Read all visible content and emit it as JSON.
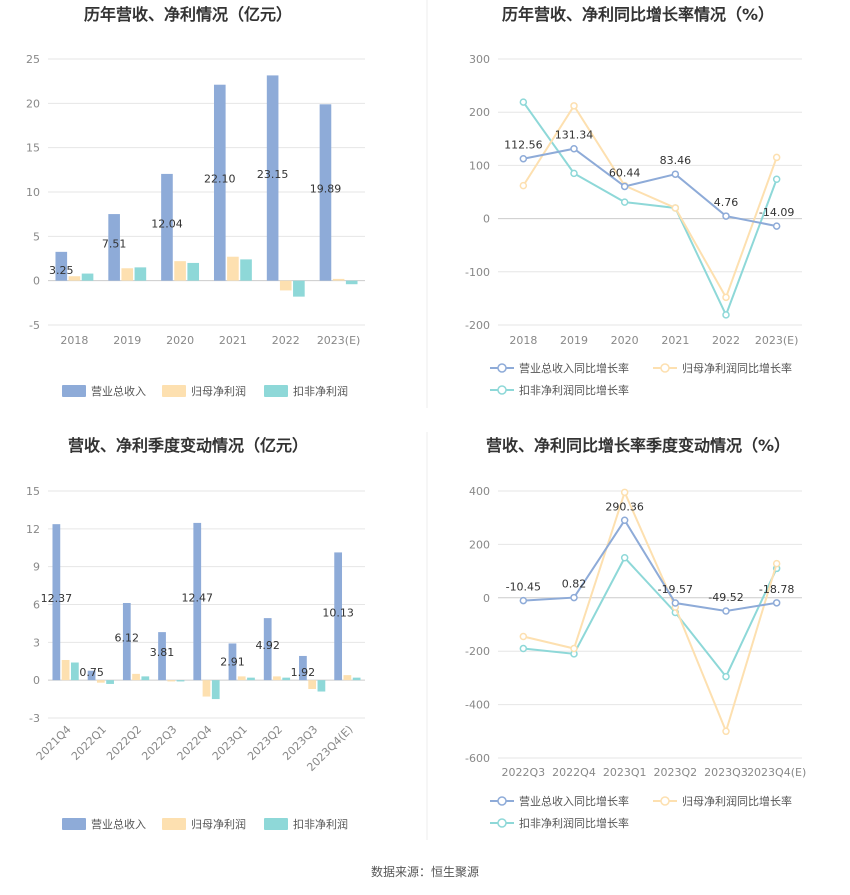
{
  "source": "数据来源：恒生聚源",
  "colors": {
    "revenue": "#8eabd8",
    "net_profit": "#fde0b0",
    "deducted_profit": "#8ed8d8",
    "grid": "#e6e6e6",
    "axis": "#cccccc"
  },
  "chart_data": [
    {
      "type": "bar",
      "title": "历年营收、净利情况（亿元）",
      "categories": [
        "2018",
        "2019",
        "2020",
        "2021",
        "2022",
        "2023(E)"
      ],
      "ylim": [
        -5,
        25
      ],
      "yticks": [
        -5,
        0,
        5,
        10,
        15,
        20,
        25
      ],
      "legend_position": "bottom",
      "series": [
        {
          "name": "营业总收入",
          "values": [
            3.25,
            7.51,
            12.04,
            22.1,
            23.15,
            19.89
          ],
          "labels": [
            "3.25",
            "7.51",
            "12.04",
            "22.10",
            "23.15",
            "19.89"
          ]
        },
        {
          "name": "归母净利润",
          "values": [
            0.5,
            1.4,
            2.2,
            2.7,
            -1.1,
            0.2
          ]
        },
        {
          "name": "扣非净利润",
          "values": [
            0.8,
            1.5,
            2.0,
            2.4,
            -1.8,
            -0.4
          ]
        }
      ]
    },
    {
      "type": "line",
      "title": "历年营收、净利同比增长率情况（%）",
      "categories": [
        "2018",
        "2019",
        "2020",
        "2021",
        "2022",
        "2023(E)"
      ],
      "ylim": [
        -200,
        300
      ],
      "yticks": [
        -200,
        -100,
        0,
        100,
        200,
        300
      ],
      "legend_position": "bottom",
      "series": [
        {
          "name": "营业总收入同比增长率",
          "values": [
            112.56,
            131.34,
            60.44,
            83.46,
            4.76,
            -14.09
          ],
          "labels": [
            "112.56",
            "131.34",
            "60.44",
            "83.46",
            "4.76",
            "-14.09"
          ]
        },
        {
          "name": "归母净利润同比增长率",
          "values": [
            62,
            212,
            62,
            20,
            -148,
            115
          ]
        },
        {
          "name": "扣非净利润同比增长率",
          "values": [
            219,
            85,
            31,
            20,
            -181,
            74
          ]
        }
      ]
    },
    {
      "type": "bar",
      "title": "营收、净利季度变动情况（亿元）",
      "categories": [
        "2021Q4",
        "2022Q1",
        "2022Q2",
        "2022Q3",
        "2022Q4",
        "2023Q1",
        "2023Q2",
        "2023Q3",
        "2023Q4(E)"
      ],
      "ylim": [
        -3,
        15
      ],
      "yticks": [
        -3,
        0,
        3,
        6,
        9,
        12,
        15
      ],
      "legend_position": "bottom",
      "series": [
        {
          "name": "营业总收入",
          "values": [
            12.37,
            0.75,
            6.12,
            3.81,
            12.47,
            2.91,
            4.92,
            1.92,
            10.13
          ],
          "labels": [
            "12.37",
            "0.75",
            "6.12",
            "3.81",
            "12.47",
            "2.91",
            "4.92",
            "1.92",
            "10.13"
          ]
        },
        {
          "name": "归母净利润",
          "values": [
            1.6,
            -0.2,
            0.5,
            -0.1,
            -1.3,
            0.3,
            0.3,
            -0.7,
            0.4
          ]
        },
        {
          "name": "扣非净利润",
          "values": [
            1.4,
            -0.3,
            0.3,
            -0.1,
            -1.5,
            0.2,
            0.2,
            -0.9,
            0.2
          ]
        }
      ]
    },
    {
      "type": "line",
      "title": "营收、净利同比增长率季度变动情况（%）",
      "categories": [
        "2022Q3",
        "2022Q4",
        "2023Q1",
        "2023Q2",
        "2023Q3",
        "2023Q4(E)"
      ],
      "ylim": [
        -600,
        400
      ],
      "yticks": [
        -600,
        -400,
        -200,
        0,
        200,
        400
      ],
      "legend_position": "bottom",
      "series": [
        {
          "name": "营业总收入同比增长率",
          "values": [
            -10.45,
            0.82,
            290.36,
            -19.57,
            -49.52,
            -18.78
          ],
          "labels": [
            "-10.45",
            "0.82",
            "290.36",
            "-19.57",
            "-49.52",
            "-18.78"
          ]
        },
        {
          "name": "归母净利润同比增长率",
          "values": [
            -145,
            -190,
            395,
            -35,
            -500,
            128
          ]
        },
        {
          "name": "扣非净利润同比增长率",
          "values": [
            -190,
            -210,
            150,
            -55,
            -295,
            110
          ]
        }
      ]
    }
  ]
}
